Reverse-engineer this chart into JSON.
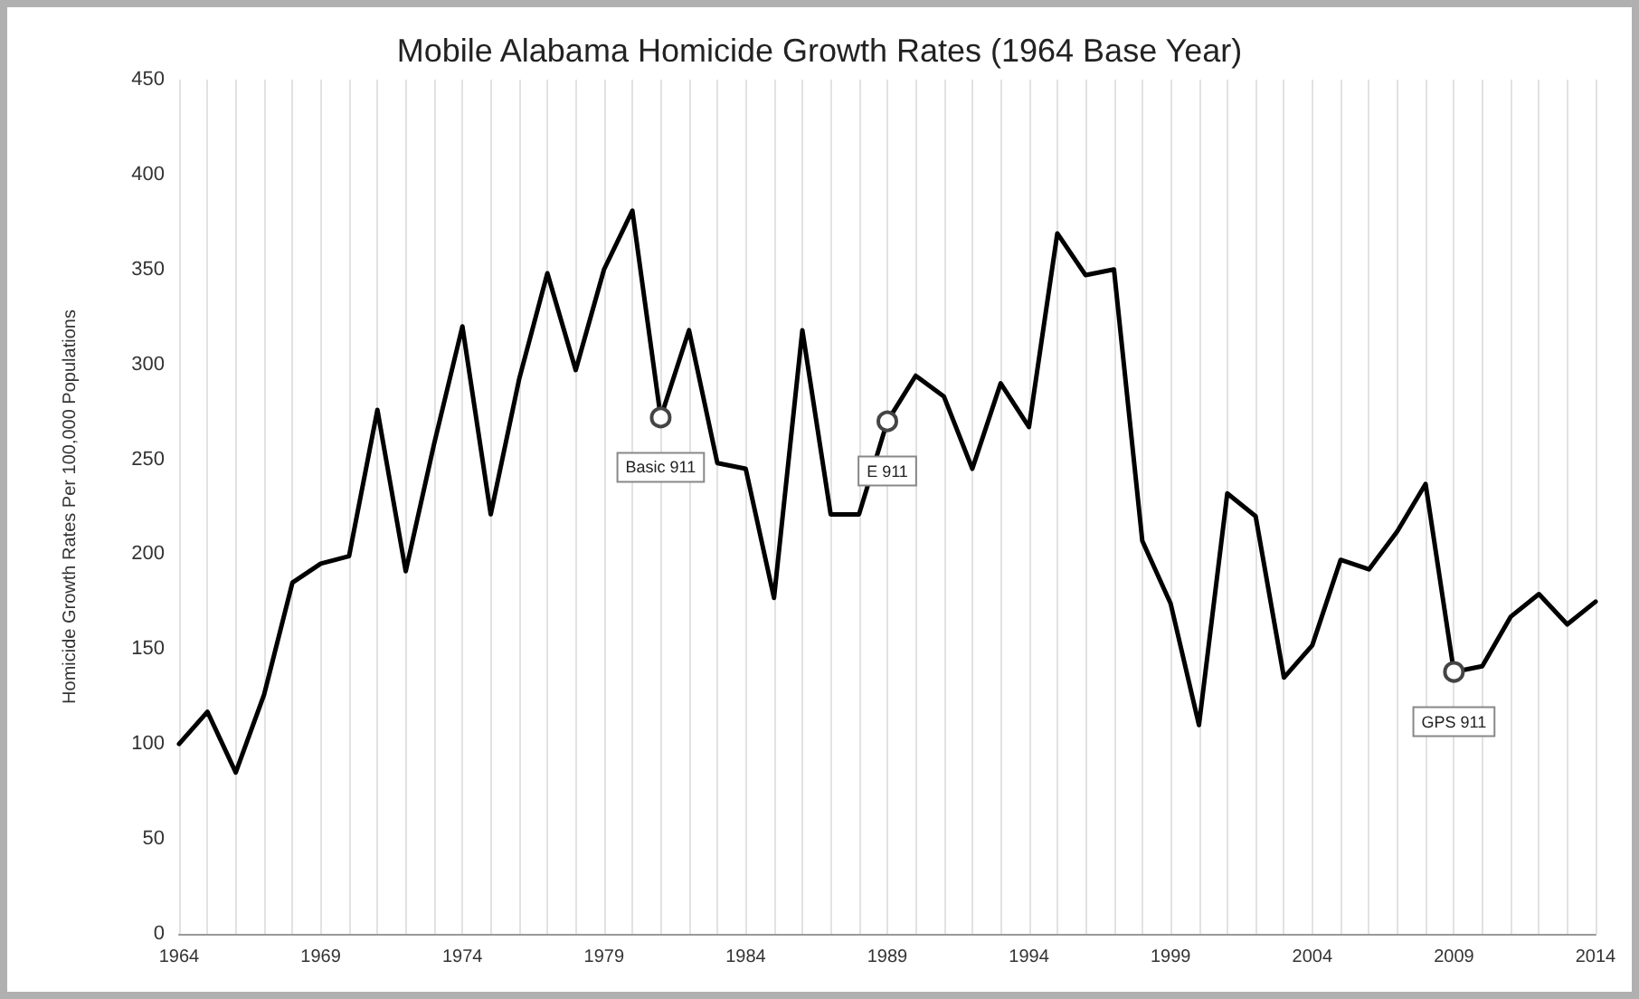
{
  "chart_data": {
    "type": "line",
    "title": "Mobile Alabama Homicide Growth Rates (1964 Base Year)",
    "ylabel": "Homicide Growth Rates Per 100,000 Populations",
    "x": [
      1964,
      1965,
      1966,
      1967,
      1968,
      1969,
      1970,
      1971,
      1972,
      1973,
      1974,
      1975,
      1976,
      1977,
      1978,
      1979,
      1980,
      1981,
      1982,
      1983,
      1984,
      1985,
      1986,
      1987,
      1988,
      1989,
      1990,
      1991,
      1992,
      1993,
      1994,
      1995,
      1996,
      1997,
      1998,
      1999,
      2000,
      2001,
      2002,
      2003,
      2004,
      2005,
      2006,
      2007,
      2008,
      2009,
      2010,
      2011,
      2012,
      2013,
      2014
    ],
    "series": [
      {
        "color": "#000000",
        "values": [
          100,
          117,
          85,
          126,
          185,
          195,
          199,
          276,
          191,
          258,
          320,
          221,
          292,
          348,
          297,
          350,
          381,
          272,
          318,
          248,
          245,
          177,
          318,
          221,
          221,
          270,
          294,
          283,
          245,
          290,
          267,
          369,
          347,
          350,
          207,
          174,
          110,
          232,
          220,
          135,
          152,
          197,
          192,
          212,
          237,
          138,
          141,
          167,
          179,
          163,
          175
        ]
      }
    ],
    "xlim": [
      1964,
      2014
    ],
    "xticks": [
      1964,
      {
        "value": 1965,
        "label": null
      },
      {
        "value": 1966,
        "label": null
      },
      {
        "value": 1967,
        "label": null
      },
      {
        "value": 1968,
        "label": null
      },
      1969,
      {
        "value": 1970,
        "label": null
      },
      {
        "value": 1971,
        "label": null
      },
      {
        "value": 1972,
        "label": null
      },
      {
        "value": 1973,
        "label": null
      },
      1974,
      {
        "value": 1975,
        "label": null
      },
      {
        "value": 1976,
        "label": null
      },
      {
        "value": 1977,
        "label": null
      },
      {
        "value": 1978,
        "label": null
      },
      1979,
      {
        "value": 1980,
        "label": null
      },
      {
        "value": 1981,
        "label": null
      },
      {
        "value": 1982,
        "label": null
      },
      {
        "value": 1983,
        "label": null
      },
      1984,
      {
        "value": 1985,
        "label": null
      },
      {
        "value": 1986,
        "label": null
      },
      {
        "value": 1987,
        "label": null
      },
      {
        "value": 1988,
        "label": null
      },
      1989,
      {
        "value": 1990,
        "label": null
      },
      {
        "value": 1991,
        "label": null
      },
      {
        "value": 1992,
        "label": null
      },
      {
        "value": 1993,
        "label": null
      },
      1994,
      {
        "value": 1995,
        "label": null
      },
      {
        "value": 1996,
        "label": null
      },
      {
        "value": 1997,
        "label": null
      },
      {
        "value": 1998,
        "label": null
      },
      1999,
      {
        "value": 2000,
        "label": null
      },
      {
        "value": 2001,
        "label": null
      },
      {
        "value": 2002,
        "label": null
      },
      {
        "value": 2003,
        "label": null
      },
      2004,
      {
        "value": 2005,
        "label": null
      },
      {
        "value": 2006,
        "label": null
      },
      {
        "value": 2007,
        "label": null
      },
      {
        "value": 2008,
        "label": null
      },
      2009,
      {
        "value": 2010,
        "label": null
      },
      {
        "value": 2011,
        "label": null
      },
      {
        "value": 2012,
        "label": null
      },
      {
        "value": 2013,
        "label": null
      },
      2014
    ],
    "ylim": [
      0,
      450
    ],
    "yticks": [
      0,
      50,
      100,
      150,
      200,
      250,
      300,
      350,
      400,
      450
    ],
    "grid": "x",
    "marker": "none",
    "line_style": "solid",
    "annotations": [
      {
        "text": "Basic 911",
        "x": 1981,
        "y": 272
      },
      {
        "text": "E 911",
        "x": 1989,
        "y": 270
      },
      {
        "text": "GPS 911",
        "x": 2009,
        "y": 138
      }
    ]
  }
}
